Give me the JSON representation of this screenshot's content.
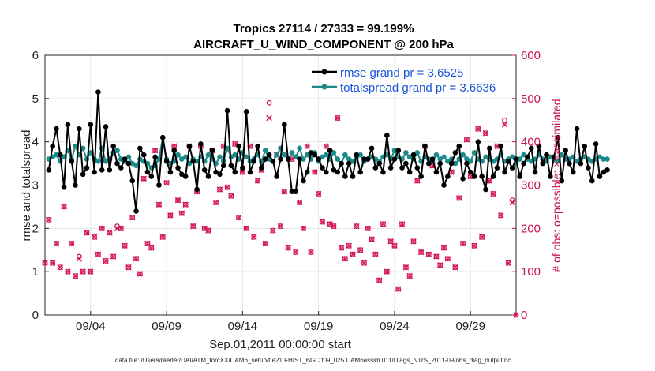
{
  "chart_data": {
    "type": "line",
    "title_line1": "Tropics 27114 / 27333 = 99.199%",
    "title_line2": "AIRCRAFT_U_WIND_COMPONENT @ 200 hPa",
    "xlabel": "Sep.01,2011 00:00:00 start",
    "ylabel_left": "rmse and totalspread",
    "ylabel_right": "# of obs: o=possible; ×=assimilated",
    "footer": "data file: /Users/raeder/DAI/ATM_forcXX/CAM6_setup/f.e21.FHIST_BGC.f09_025.CAM6assim.011/Diags_NTrS_2011-09/obs_diag_output.nc",
    "xlim": [
      1,
      32
    ],
    "ylim_left": [
      0,
      6
    ],
    "ylim_right": [
      0,
      600
    ],
    "x_ticks": [
      {
        "day": 4,
        "label": "09/04"
      },
      {
        "day": 9,
        "label": "09/09"
      },
      {
        "day": 14,
        "label": "09/14"
      },
      {
        "day": 19,
        "label": "09/19"
      },
      {
        "day": 24,
        "label": "09/24"
      },
      {
        "day": 29,
        "label": "09/29"
      }
    ],
    "y_ticks_left": [
      "0",
      "1",
      "2",
      "3",
      "4",
      "5",
      "6"
    ],
    "y_ticks_right": [
      "0",
      "100",
      "200",
      "300",
      "400",
      "500",
      "600"
    ],
    "x_start": 1.25,
    "x_step": 0.25,
    "series": [
      {
        "name": "rmse grand pr = 3.6525",
        "color": "#000000",
        "values": [
          3.35,
          3.9,
          4.3,
          3.7,
          2.95,
          4.4,
          3.55,
          3.0,
          4.3,
          3.25,
          3.4,
          4.4,
          3.3,
          5.15,
          3.35,
          4.35,
          3.35,
          3.9,
          3.5,
          3.4,
          3.6,
          3.5,
          3.1,
          2.4,
          3.85,
          3.7,
          3.3,
          3.2,
          3.65,
          3.0,
          4.1,
          3.55,
          3.3,
          3.8,
          3.4,
          3.25,
          3.2,
          3.9,
          3.55,
          2.9,
          3.95,
          3.35,
          3.2,
          3.8,
          3.3,
          3.25,
          3.45,
          4.72,
          3.45,
          3.3,
          3.9,
          3.4,
          4.7,
          3.3,
          3.55,
          3.9,
          3.4,
          3.6,
          3.7,
          3.55,
          3.2,
          3.6,
          4.4,
          3.6,
          2.85,
          2.85,
          3.6,
          3.1,
          3.3,
          3.75,
          3.7,
          3.6,
          3.4,
          3.3,
          3.8,
          3.35,
          3.3,
          3.5,
          3.2,
          3.5,
          3.2,
          3.7,
          3.3,
          3.6,
          3.6,
          3.85,
          3.4,
          3.5,
          3.3,
          4.15,
          3.4,
          3.6,
          3.8,
          3.4,
          3.5,
          3.3,
          3.7,
          3.4,
          3.2,
          3.9,
          3.5,
          3.6,
          3.3,
          3.5,
          3.0,
          3.2,
          3.5,
          3.75,
          3.9,
          3.15,
          3.5,
          3.3,
          3.2,
          4.0,
          3.2,
          2.9,
          3.85,
          3.2,
          3.4,
          3.9,
          3.3,
          3.55,
          3.4,
          3.6,
          3.2,
          3.5,
          3.65,
          3.85,
          3.3,
          3.9,
          3.5,
          3.7,
          3.2,
          3.65,
          4.1,
          3.1,
          3.8,
          3.5,
          3.3,
          4.3,
          3.5,
          3.9,
          3.4,
          3.1,
          3.95,
          3.2,
          3.3,
          3.35
        ]
      },
      {
        "name": "totalspread grand pr = 3.6636",
        "color": "#1a8a8a",
        "values": [
          3.6,
          3.65,
          3.7,
          3.55,
          3.65,
          3.8,
          3.6,
          3.9,
          3.7,
          3.85,
          3.6,
          3.75,
          3.6,
          3.55,
          3.85,
          3.55,
          3.6,
          3.75,
          3.8,
          3.6,
          3.55,
          3.65,
          3.5,
          3.45,
          3.6,
          3.55,
          3.5,
          3.4,
          3.45,
          3.6,
          4.1,
          3.6,
          3.5,
          3.55,
          3.7,
          3.6,
          3.65,
          3.5,
          3.6,
          3.55,
          3.65,
          3.55,
          3.7,
          3.6,
          3.5,
          3.65,
          3.55,
          3.85,
          3.65,
          3.7,
          3.6,
          3.75,
          3.65,
          3.55,
          3.6,
          3.7,
          3.55,
          3.8,
          3.6,
          3.55,
          3.7,
          3.85,
          3.7,
          3.6,
          3.75,
          3.65,
          3.85,
          3.6,
          3.7,
          3.6,
          3.75,
          3.55,
          3.65,
          3.7,
          3.6,
          3.75,
          3.6,
          3.5,
          3.7,
          3.6,
          3.55,
          3.65,
          3.7,
          3.55,
          3.6,
          3.65,
          3.6,
          3.55,
          3.65,
          3.7,
          3.6,
          3.8,
          3.65,
          3.6,
          3.75,
          3.65,
          3.6,
          3.75,
          3.55,
          3.65,
          3.6,
          3.55,
          3.7,
          3.6,
          3.65,
          3.55,
          3.6,
          3.5,
          3.6,
          3.7,
          3.6,
          3.55,
          3.75,
          3.6,
          3.55,
          3.65,
          3.6,
          3.55,
          3.6,
          3.7,
          3.55,
          3.6,
          3.65,
          3.5,
          3.6,
          3.7,
          3.6,
          3.55,
          3.6,
          3.7,
          3.6,
          3.55,
          3.65,
          3.6,
          3.55,
          3.7,
          3.6,
          3.6,
          3.65,
          3.55,
          3.6,
          3.65,
          3.6,
          3.55,
          3.6,
          3.65,
          3.6,
          3.6
        ]
      }
    ],
    "obs_series": {
      "name": "# of obs (possible / assimilated)",
      "color": "#d41a5a",
      "x_start": 1.0,
      "x_step": 0.25,
      "possible": [
        120,
        220,
        120,
        165,
        110,
        250,
        100,
        165,
        90,
        135,
        100,
        190,
        100,
        180,
        140,
        200,
        125,
        190,
        135,
        205,
        200,
        160,
        110,
        225,
        130,
        95,
        315,
        165,
        155,
        380,
        255,
        180,
        305,
        230,
        390,
        265,
        235,
        255,
        390,
        205,
        285,
        390,
        200,
        195,
        380,
        260,
        290,
        390,
        295,
        275,
        395,
        225,
        330,
        200,
        390,
        180,
        310,
        335,
        165,
        490,
        195,
        370,
        205,
        285,
        155,
        360,
        145,
        260,
        200,
        390,
        145,
        330,
        280,
        215,
        390,
        210,
        205,
        455,
        155,
        130,
        160,
        140,
        205,
        150,
        120,
        200,
        175,
        140,
        80,
        210,
        100,
        170,
        160,
        60,
        210,
        110,
        90,
        170,
        310,
        145,
        390,
        140,
        345,
        135,
        115,
        155,
        130,
        330,
        110,
        270,
        165,
        405,
        320,
        160,
        430,
        180,
        420,
        310,
        280,
        390,
        230,
        450,
        120,
        265,
        0,
        255,
        160,
        230,
        210,
        380,
        150,
        300,
        120,
        200,
        260,
        200,
        190,
        120,
        390,
        350,
        200,
        180,
        350,
        220,
        250,
        210,
        230,
        120,
        240,
        0
      ],
      "assimilated": [
        120,
        220,
        120,
        165,
        110,
        250,
        100,
        165,
        90,
        130,
        100,
        190,
        100,
        180,
        140,
        200,
        125,
        190,
        135,
        200,
        200,
        160,
        110,
        225,
        130,
        95,
        315,
        165,
        155,
        380,
        255,
        180,
        305,
        230,
        390,
        265,
        235,
        255,
        390,
        205,
        285,
        390,
        200,
        195,
        380,
        260,
        290,
        390,
        295,
        275,
        395,
        225,
        330,
        200,
        390,
        180,
        310,
        335,
        165,
        455,
        195,
        370,
        205,
        285,
        155,
        360,
        145,
        260,
        200,
        390,
        145,
        330,
        280,
        215,
        390,
        210,
        205,
        455,
        155,
        130,
        160,
        140,
        205,
        150,
        120,
        200,
        175,
        140,
        80,
        210,
        100,
        170,
        160,
        60,
        210,
        110,
        90,
        170,
        310,
        145,
        390,
        140,
        345,
        135,
        115,
        155,
        130,
        330,
        110,
        270,
        165,
        405,
        320,
        160,
        430,
        180,
        420,
        310,
        280,
        390,
        230,
        440,
        120,
        260,
        0,
        255,
        160,
        230,
        210,
        380,
        150,
        300,
        120,
        200,
        260,
        200,
        190,
        120,
        390,
        350,
        200,
        180,
        350,
        220,
        250,
        210,
        230,
        120,
        240,
        0
      ]
    }
  }
}
